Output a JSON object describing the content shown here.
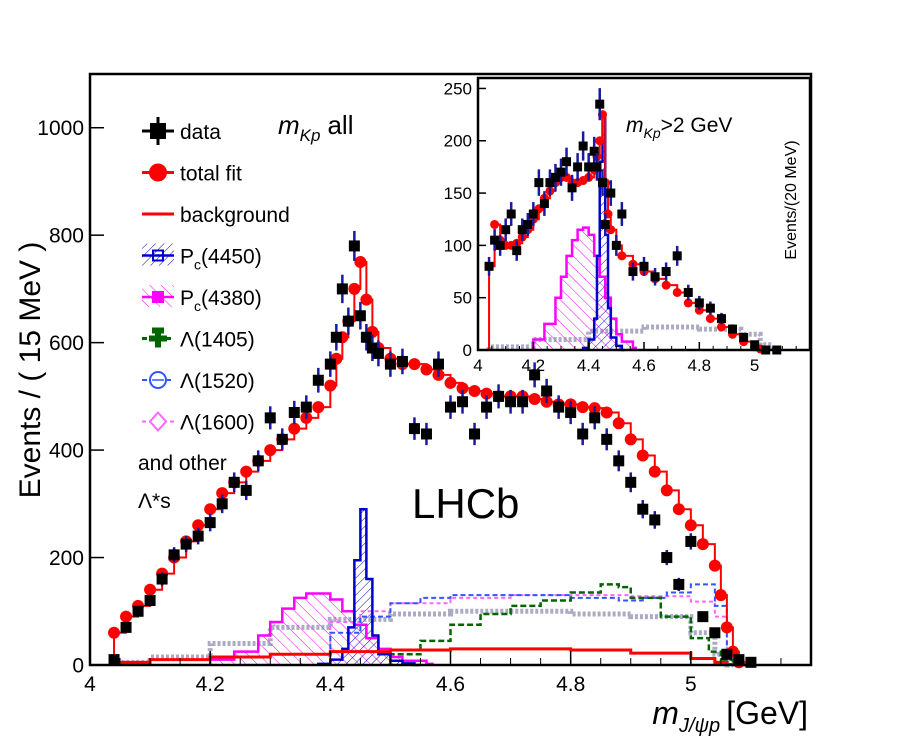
{
  "chart_data": [
    {
      "type": "line",
      "panel": "main",
      "xlabel_main": "m",
      "xlabel_sub": "J/ψp",
      "xlabel_unit": "[GeV]",
      "ylabel": "Events / ( 15 MeV )",
      "xlim": [
        4.0,
        5.2
      ],
      "ylim": [
        0,
        1100
      ],
      "x_ticks": [
        "4",
        "4.2",
        "4.4",
        "4.6",
        "4.8",
        "5"
      ],
      "y_ticks": [
        "0",
        "200",
        "400",
        "600",
        "800",
        "1000"
      ],
      "annotation_mkp_m": "m",
      "annotation_mkp_sub": "Kp",
      "annotation_mkp_rest": "all",
      "experiment_label": "LHCb",
      "legend_position": "top-left",
      "legend": [
        {
          "key": "data",
          "label": "data",
          "color": "#000000",
          "marker": "square"
        },
        {
          "key": "total",
          "label": "total fit",
          "color": "#ff0000",
          "marker": "circle"
        },
        {
          "key": "background",
          "label": "background",
          "color": "#ff0000",
          "marker": "line"
        },
        {
          "key": "pc4450",
          "label": "P",
          "label_sub": "c",
          "label_rest": "(4450)",
          "color": "#0000cc",
          "marker": "hatched-box"
        },
        {
          "key": "pc4380",
          "label": "P",
          "label_sub": "c",
          "label_rest": "(4380)",
          "color": "#ff00ff",
          "marker": "hatched-box"
        },
        {
          "key": "l1405",
          "label": "Λ(1405)",
          "color": "#006400",
          "marker": "cross"
        },
        {
          "key": "l1520",
          "label": "Λ(1520)",
          "color": "#3355ff",
          "marker": "open-circle"
        },
        {
          "key": "l1600",
          "label": "Λ(1600)",
          "color": "#ff66ff",
          "marker": "open-diamond"
        }
      ],
      "legend_extra": [
        "and other",
        "Λ*s"
      ],
      "series": [
        {
          "key": "total",
          "name": "total fit",
          "color": "#ff0000",
          "x": [
            4.04,
            4.06,
            4.08,
            4.1,
            4.12,
            4.14,
            4.16,
            4.18,
            4.2,
            4.22,
            4.24,
            4.26,
            4.28,
            4.3,
            4.32,
            4.34,
            4.36,
            4.38,
            4.4,
            4.41,
            4.42,
            4.43,
            4.44,
            4.45,
            4.46,
            4.47,
            4.48,
            4.5,
            4.52,
            4.54,
            4.56,
            4.58,
            4.6,
            4.62,
            4.64,
            4.66,
            4.68,
            4.7,
            4.72,
            4.74,
            4.76,
            4.78,
            4.8,
            4.82,
            4.84,
            4.86,
            4.88,
            4.9,
            4.92,
            4.94,
            4.96,
            4.98,
            5.0,
            5.02,
            5.04,
            5.05,
            5.06,
            5.07,
            5.08,
            5.1
          ],
          "y": [
            60,
            90,
            110,
            140,
            170,
            200,
            230,
            260,
            290,
            320,
            340,
            360,
            380,
            400,
            420,
            440,
            460,
            480,
            520,
            570,
            610,
            640,
            700,
            750,
            680,
            620,
            590,
            570,
            560,
            560,
            550,
            540,
            525,
            515,
            510,
            505,
            500,
            500,
            500,
            495,
            490,
            485,
            485,
            480,
            478,
            470,
            450,
            420,
            390,
            360,
            325,
            290,
            260,
            225,
            185,
            130,
            70,
            25,
            5,
            0
          ]
        },
        {
          "key": "background",
          "name": "background",
          "color": "#ff0000",
          "x": [
            4.04,
            4.1,
            4.2,
            4.3,
            4.4,
            4.5,
            4.6,
            4.7,
            4.8,
            4.9,
            5.0,
            5.04,
            5.06,
            5.08
          ],
          "y": [
            5,
            10,
            15,
            20,
            25,
            28,
            30,
            30,
            28,
            22,
            12,
            5,
            1,
            0
          ]
        },
        {
          "key": "pc4450",
          "name": "P_c(4450)",
          "color": "#0000cc",
          "x": [
            4.38,
            4.4,
            4.42,
            4.43,
            4.44,
            4.45,
            4.46,
            4.47,
            4.48,
            4.5,
            4.52,
            4.54
          ],
          "y": [
            2,
            10,
            30,
            70,
            195,
            290,
            160,
            55,
            20,
            8,
            3,
            0
          ]
        },
        {
          "key": "pc4380",
          "name": "P_c(4380)",
          "color": "#ff00ff",
          "x": [
            4.2,
            4.24,
            4.28,
            4.3,
            4.32,
            4.34,
            4.36,
            4.38,
            4.4,
            4.42,
            4.44,
            4.46,
            4.48,
            4.5,
            4.52,
            4.56
          ],
          "y": [
            10,
            25,
            55,
            80,
            105,
            125,
            133,
            133,
            122,
            100,
            75,
            50,
            30,
            15,
            8,
            2
          ]
        },
        {
          "key": "l1405",
          "name": "Λ(1405)",
          "color": "#006400",
          "x": [
            4.5,
            4.55,
            4.6,
            4.65,
            4.7,
            4.75,
            4.8,
            4.85,
            4.88,
            4.9,
            4.95,
            5.0,
            5.03,
            5.05,
            5.07
          ],
          "y": [
            20,
            45,
            75,
            95,
            110,
            120,
            135,
            150,
            145,
            125,
            90,
            50,
            25,
            10,
            0
          ]
        },
        {
          "key": "l1520",
          "name": "Λ(1520)",
          "color": "#3355ff",
          "x": [
            4.4,
            4.45,
            4.5,
            4.55,
            4.6,
            4.7,
            4.8,
            4.88,
            4.92,
            4.96,
            5.0,
            5.04,
            5.06
          ],
          "y": [
            60,
            90,
            115,
            125,
            130,
            130,
            125,
            120,
            125,
            135,
            150,
            110,
            0
          ]
        },
        {
          "key": "l1600",
          "name": "Λ(1600)",
          "color": "#ff66ff",
          "x": [
            4.4,
            4.45,
            4.5,
            4.6,
            4.7,
            4.8,
            4.9,
            5.0,
            5.04,
            5.06
          ],
          "y": [
            80,
            100,
            115,
            125,
            130,
            130,
            128,
            118,
            90,
            0
          ]
        },
        {
          "key": "other",
          "name": "and other Λ*s",
          "color": "#8888aa",
          "x": [
            4.04,
            4.1,
            4.2,
            4.3,
            4.4,
            4.5,
            4.6,
            4.7,
            4.8,
            4.9,
            5.0,
            5.04,
            5.06
          ],
          "y": [
            5,
            15,
            40,
            70,
            85,
            95,
            100,
            100,
            95,
            90,
            60,
            20,
            0
          ]
        }
      ],
      "data_points": {
        "key": "data",
        "name": "data",
        "color": "#000000",
        "x": [
          4.04,
          4.06,
          4.08,
          4.1,
          4.12,
          4.14,
          4.16,
          4.18,
          4.2,
          4.22,
          4.24,
          4.26,
          4.28,
          4.3,
          4.32,
          4.34,
          4.36,
          4.38,
          4.4,
          4.41,
          4.42,
          4.43,
          4.44,
          4.45,
          4.46,
          4.47,
          4.48,
          4.5,
          4.52,
          4.54,
          4.56,
          4.58,
          4.6,
          4.62,
          4.64,
          4.66,
          4.68,
          4.7,
          4.72,
          4.74,
          4.76,
          4.78,
          4.8,
          4.82,
          4.84,
          4.86,
          4.88,
          4.9,
          4.92,
          4.94,
          4.96,
          4.98,
          5.0,
          5.02,
          5.04,
          5.06,
          5.08,
          5.1
        ],
        "y": [
          10,
          70,
          100,
          120,
          160,
          205,
          225,
          240,
          265,
          300,
          340,
          325,
          380,
          460,
          420,
          470,
          480,
          530,
          560,
          610,
          700,
          640,
          780,
          650,
          610,
          590,
          580,
          560,
          565,
          440,
          430,
          560,
          480,
          490,
          430,
          480,
          500,
          490,
          490,
          540,
          510,
          480,
          470,
          430,
          460,
          420,
          380,
          340,
          290,
          270,
          200,
          150,
          230,
          90,
          60,
          20,
          10,
          5
        ]
      }
    },
    {
      "type": "line",
      "panel": "inset",
      "ylabel": "Events/(20 MeV)",
      "xlim": [
        4.0,
        5.2
      ],
      "ylim": [
        0,
        260
      ],
      "x_ticks": [
        "4",
        "4.2",
        "4.4",
        "4.6",
        "4.8",
        "5"
      ],
      "y_ticks": [
        "0",
        "50",
        "100",
        "150",
        "200",
        "250"
      ],
      "annotation_m": "m",
      "annotation_sub": "Kp",
      "annotation_rest": ">2 GeV",
      "series": [
        {
          "key": "total",
          "name": "total fit",
          "color": "#ff0000",
          "x": [
            4.04,
            4.06,
            4.08,
            4.1,
            4.12,
            4.14,
            4.16,
            4.18,
            4.2,
            4.22,
            4.24,
            4.26,
            4.28,
            4.3,
            4.32,
            4.34,
            4.36,
            4.38,
            4.4,
            4.42,
            4.43,
            4.44,
            4.45,
            4.46,
            4.47,
            4.48,
            4.5,
            4.52,
            4.56,
            4.6,
            4.64,
            4.68,
            4.72,
            4.76,
            4.8,
            4.84,
            4.88,
            4.92,
            4.96,
            5.0,
            5.02,
            5.04,
            5.06
          ],
          "y": [
            80,
            120,
            105,
            100,
            100,
            102,
            108,
            115,
            125,
            135,
            145,
            152,
            160,
            165,
            165,
            160,
            160,
            162,
            165,
            172,
            185,
            200,
            225,
            160,
            130,
            115,
            100,
            90,
            82,
            75,
            68,
            62,
            55,
            45,
            38,
            30,
            22,
            15,
            8,
            3,
            1,
            0,
            0
          ]
        },
        {
          "key": "pc4450",
          "name": "P_c(4450)",
          "color": "#0000cc",
          "x": [
            4.38,
            4.4,
            4.42,
            4.43,
            4.44,
            4.45,
            4.46,
            4.47,
            4.48,
            4.5,
            4.52
          ],
          "y": [
            2,
            10,
            30,
            90,
            180,
            225,
            110,
            40,
            12,
            4,
            0
          ]
        },
        {
          "key": "pc4380",
          "name": "P_c(4380)",
          "color": "#ff00ff",
          "x": [
            4.2,
            4.24,
            4.28,
            4.3,
            4.32,
            4.34,
            4.36,
            4.38,
            4.4,
            4.42,
            4.44,
            4.46,
            4.48,
            4.5,
            4.52,
            4.56
          ],
          "y": [
            10,
            25,
            50,
            70,
            90,
            105,
            115,
            117,
            110,
            90,
            70,
            50,
            30,
            15,
            8,
            2
          ]
        },
        {
          "key": "other",
          "name": "and other Λ*s",
          "color": "#8899cc",
          "x": [
            4.04,
            4.2,
            4.4,
            4.6,
            4.8,
            4.95,
            5.02,
            5.06
          ],
          "y": [
            3,
            10,
            18,
            22,
            20,
            15,
            5,
            0
          ]
        }
      ],
      "data_points": {
        "key": "data",
        "name": "data",
        "color": "#000000",
        "x": [
          4.04,
          4.06,
          4.08,
          4.1,
          4.12,
          4.14,
          4.16,
          4.18,
          4.2,
          4.22,
          4.24,
          4.26,
          4.28,
          4.3,
          4.32,
          4.34,
          4.36,
          4.38,
          4.4,
          4.42,
          4.43,
          4.44,
          4.45,
          4.46,
          4.48,
          4.5,
          4.52,
          4.56,
          4.6,
          4.64,
          4.68,
          4.72,
          4.76,
          4.8,
          4.84,
          4.88,
          4.92,
          4.96,
          5.0,
          5.04,
          5.08
        ],
        "y": [
          80,
          105,
          100,
          115,
          130,
          95,
          115,
          120,
          130,
          160,
          140,
          160,
          165,
          170,
          180,
          155,
          175,
          195,
          175,
          190,
          175,
          235,
          160,
          120,
          150,
          100,
          130,
          75,
          80,
          70,
          75,
          90,
          55,
          45,
          40,
          30,
          20,
          12,
          5,
          0,
          0
        ]
      }
    }
  ]
}
